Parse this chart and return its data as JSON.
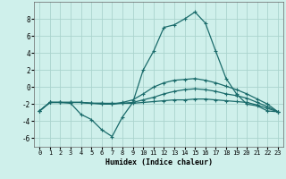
{
  "xlabel": "Humidex (Indice chaleur)",
  "background_color": "#cff0eb",
  "grid_color": "#aad4ce",
  "line_color": "#1a6b6b",
  "xlim": [
    -0.5,
    23.5
  ],
  "ylim": [
    -7,
    10
  ],
  "yticks": [
    -6,
    -4,
    -2,
    0,
    2,
    4,
    6,
    8
  ],
  "xticks": [
    0,
    1,
    2,
    3,
    4,
    5,
    6,
    7,
    8,
    9,
    10,
    11,
    12,
    13,
    14,
    15,
    16,
    17,
    18,
    19,
    20,
    21,
    22,
    23
  ],
  "lines": [
    {
      "x": [
        0,
        1,
        2,
        3,
        4,
        5,
        6,
        7,
        8,
        9,
        10,
        11,
        12,
        13,
        14,
        15,
        16,
        17,
        18,
        19,
        20,
        21,
        22,
        23
      ],
      "y": [
        -2.8,
        -1.8,
        -1.8,
        -1.9,
        -3.2,
        -3.8,
        -5.0,
        -5.8,
        -3.5,
        -1.8,
        2.0,
        4.2,
        7.0,
        7.3,
        8.0,
        8.8,
        7.5,
        4.2,
        1.0,
        -0.8,
        -2.0,
        -2.2,
        -2.8,
        -2.9
      ]
    },
    {
      "x": [
        0,
        1,
        2,
        3,
        4,
        5,
        6,
        7,
        8,
        9,
        10,
        11,
        12,
        13,
        14,
        15,
        16,
        17,
        18,
        19,
        20,
        21,
        22,
        23
      ],
      "y": [
        -2.8,
        -1.8,
        -1.8,
        -1.8,
        -1.8,
        -1.9,
        -2.0,
        -2.0,
        -1.8,
        -1.5,
        -0.8,
        0.0,
        0.5,
        0.8,
        0.9,
        1.0,
        0.8,
        0.5,
        0.1,
        -0.3,
        -0.8,
        -1.4,
        -2.0,
        -2.9
      ]
    },
    {
      "x": [
        0,
        1,
        2,
        3,
        4,
        5,
        6,
        7,
        8,
        9,
        10,
        11,
        12,
        13,
        14,
        15,
        16,
        17,
        18,
        19,
        20,
        21,
        22,
        23
      ],
      "y": [
        -2.8,
        -1.8,
        -1.8,
        -1.8,
        -1.8,
        -1.9,
        -1.9,
        -2.0,
        -1.9,
        -1.8,
        -1.5,
        -1.2,
        -0.8,
        -0.5,
        -0.3,
        -0.2,
        -0.3,
        -0.5,
        -0.8,
        -1.0,
        -1.3,
        -1.8,
        -2.3,
        -2.9
      ]
    },
    {
      "x": [
        0,
        1,
        2,
        3,
        4,
        5,
        6,
        7,
        8,
        9,
        10,
        11,
        12,
        13,
        14,
        15,
        16,
        17,
        18,
        19,
        20,
        21,
        22,
        23
      ],
      "y": [
        -2.8,
        -1.8,
        -1.8,
        -1.8,
        -1.8,
        -1.9,
        -1.9,
        -1.9,
        -1.9,
        -1.9,
        -1.8,
        -1.7,
        -1.6,
        -1.5,
        -1.5,
        -1.4,
        -1.4,
        -1.5,
        -1.6,
        -1.7,
        -1.8,
        -2.1,
        -2.5,
        -2.9
      ]
    }
  ]
}
